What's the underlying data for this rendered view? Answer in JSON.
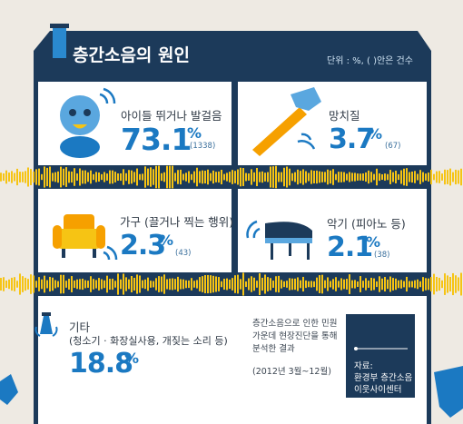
{
  "header": {
    "title": "층간소음의 원인",
    "unit_note": "단위 : %, ( )안은 건수"
  },
  "chart_data": {
    "type": "table",
    "title": "층간소음의 원인",
    "unit": "단위 : %, ( )안은 건수",
    "items": [
      {
        "label": "아이들 뛰거나 발걸음",
        "value": 73.1,
        "value_text": "73.1",
        "count": "(1338)",
        "icon": "child-face-icon"
      },
      {
        "label": "망치질",
        "value": 3.7,
        "value_text": "3.7",
        "count": "(67)",
        "icon": "hammer-icon"
      },
      {
        "label": "가구 (끌거나 찍는 행위)",
        "value": 2.3,
        "value_text": "2.3",
        "count": "(43)",
        "icon": "armchair-icon"
      },
      {
        "label": "악기 (피아노 등)",
        "value": 2.1,
        "value_text": "2.1",
        "count": "(38)",
        "icon": "piano-icon"
      },
      {
        "label": "기타",
        "sublabel": "(청소기 · 화장실사용, 개짖는 소리 등)",
        "value": 18.8,
        "value_text": "18.8",
        "count": "",
        "icon": "cleaning-tool-icon"
      }
    ],
    "percent_sign": "%"
  },
  "footnote": {
    "line1": "층간소음으로 인한 민원",
    "line2": "가운데 현장진단을 통해",
    "line3": "분석한 결과",
    "period": "(2012년 3월~12월)"
  },
  "source": {
    "label": "자료:",
    "org1": "환경부 층간소음",
    "org2": "이웃사이센터"
  },
  "colors": {
    "navy": "#1c3a5a",
    "accent_blue": "#1b79c2",
    "wave_yellow": "#f6c414",
    "panel": "#ffffff"
  }
}
